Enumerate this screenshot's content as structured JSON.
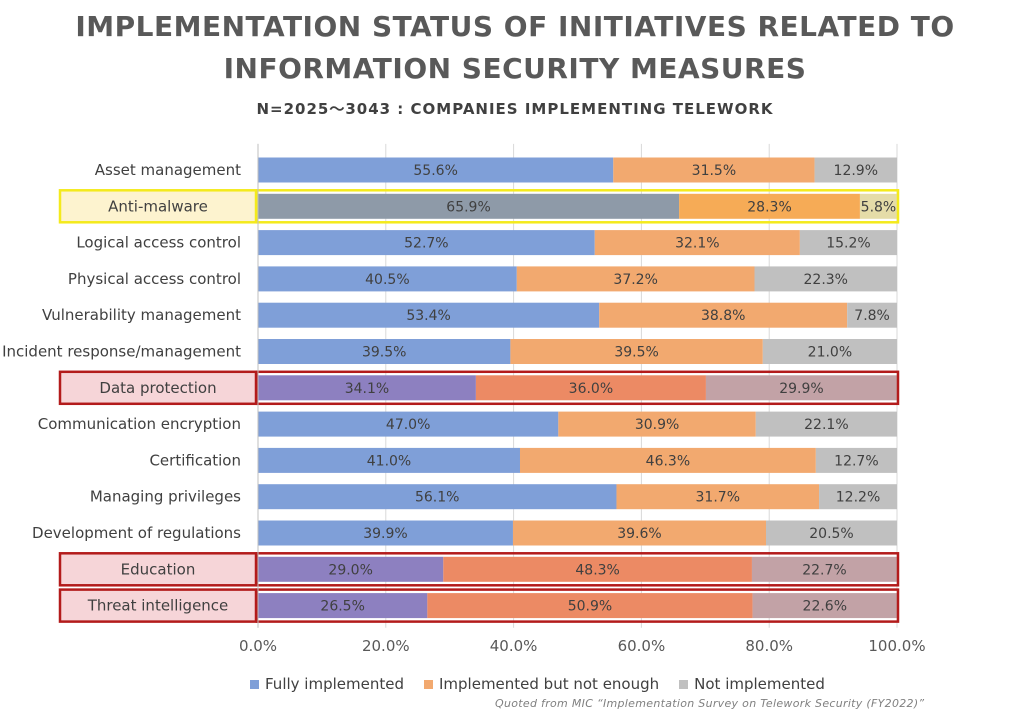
{
  "chart_data": {
    "type": "bar",
    "orientation": "horizontal",
    "stacked": true,
    "title_line1": "IMPLEMENTATION STATUS OF INITIATIVES RELATED TO",
    "title_line2": "INFORMATION SECURITY MEASURES",
    "subtitle": "N=2025～3043 : COMPANIES IMPLEMENTING TELEWORK",
    "categories": [
      "Asset management",
      "Anti-malware",
      "Logical access control",
      "Physical access control",
      "Vulnerability management",
      "Incident response/management",
      "Data protection",
      "Communication encryption",
      "Certification",
      "Managing privileges",
      "Development of regulations",
      "Education",
      "Threat intelligence"
    ],
    "series": [
      {
        "name": "Fully implemented",
        "values": [
          55.6,
          65.9,
          52.7,
          40.5,
          53.4,
          39.5,
          34.1,
          47.0,
          41.0,
          56.1,
          39.9,
          29.0,
          26.5
        ]
      },
      {
        "name": "Implemented but not enough",
        "values": [
          31.5,
          28.3,
          32.1,
          37.2,
          38.8,
          39.5,
          36.0,
          30.9,
          46.3,
          31.7,
          39.6,
          48.3,
          50.9
        ]
      },
      {
        "name": "Not implemented",
        "values": [
          12.9,
          5.8,
          15.2,
          22.3,
          7.8,
          21.0,
          29.9,
          22.1,
          12.7,
          12.2,
          20.5,
          22.7,
          22.6
        ]
      }
    ],
    "value_labels": [
      [
        "55.6%",
        "31.5%",
        "12.9%"
      ],
      [
        "65.9%",
        "28.3%",
        "5.8%"
      ],
      [
        "52.7%",
        "32.1%",
        "15.2%"
      ],
      [
        "40.5%",
        "37.2%",
        "22.3%"
      ],
      [
        "53.4%",
        "38.8%",
        "7.8%"
      ],
      [
        "39.5%",
        "39.5%",
        "21.0%"
      ],
      [
        "34.1%",
        "36.0%",
        "29.9%"
      ],
      [
        "47.0%",
        "30.9%",
        "22.1%"
      ],
      [
        "41.0%",
        "46.3%",
        "12.7%"
      ],
      [
        "56.1%",
        "31.7%",
        "12.2%"
      ],
      [
        "39.9%",
        "39.6%",
        "20.5%"
      ],
      [
        "29.0%",
        "48.3%",
        "22.7%"
      ],
      [
        "26.5%",
        "50.9%",
        "22.6%"
      ]
    ],
    "xlim": [
      0,
      100
    ],
    "xticks": [
      0,
      20,
      40,
      60,
      80,
      100
    ],
    "xtick_labels": [
      "0.0%",
      "20.0%",
      "40.0%",
      "60.0%",
      "80.0%",
      "100.0%"
    ],
    "grid": true,
    "legend_position": "bottom",
    "colors": {
      "Fully implemented": "#7f9fd8",
      "Implemented but not enough": "#f2a96f",
      "Not implemented": "#c0c0c0"
    },
    "highlights": {
      "Anti-malware": "yellow",
      "Data protection": "red",
      "Education": "red",
      "Threat intelligence": "red"
    },
    "highlight_colors": {
      "yellow": {
        "border": "#f4ea1c",
        "fill": "#fdf3cf",
        "tint": "#8e9aa8",
        "tint2": "#f6ab56",
        "tint3": "#e5dca8"
      },
      "red": {
        "border": "#b31b1b",
        "fill": "#f6d5d8",
        "tint": "#8d80c0",
        "tint2": "#ec8a64",
        "tint3": "#c2a2a6"
      }
    }
  },
  "source_note": "Quoted from MIC “Implementation Survey on Telework Security (FY2022)”"
}
